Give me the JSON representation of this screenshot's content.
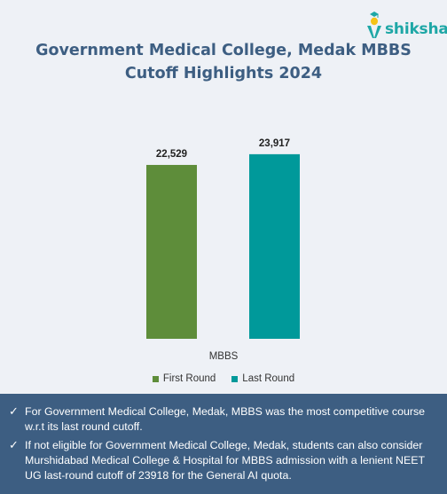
{
  "brand": {
    "name": "shiksha",
    "colors": {
      "teal": "#1ea7a6",
      "yellow": "#f4c318"
    }
  },
  "chart_data": {
    "type": "bar",
    "title": "Government Medical College, Medak MBBS Cutoff Highlights 2024",
    "categories": [
      "MBBS"
    ],
    "series": [
      {
        "name": "First Round",
        "values": [
          22529
        ],
        "labels": [
          "22,529"
        ],
        "color": "#5e8d3a"
      },
      {
        "name": "Last Round",
        "values": [
          23917
        ],
        "labels": [
          "23,917"
        ],
        "color": "#00999a"
      }
    ],
    "ylim": [
      0,
      28500
    ],
    "grid": false,
    "legend": "bottom"
  },
  "notes": [
    "For Government Medical College, Medak, MBBS was the most competitive course w.r.t its last round cutoff.",
    "If not eligible for Government Medical College, Medak, students can also consider Murshidabad Medical College & Hospital for MBBS admission with a lenient NEET UG last-round cutoff of 23918 for the General AI quota."
  ],
  "colors": {
    "chart_bg": "#eef1f6",
    "title": "#3d5e82",
    "notes_bg": "#3d5e82"
  }
}
